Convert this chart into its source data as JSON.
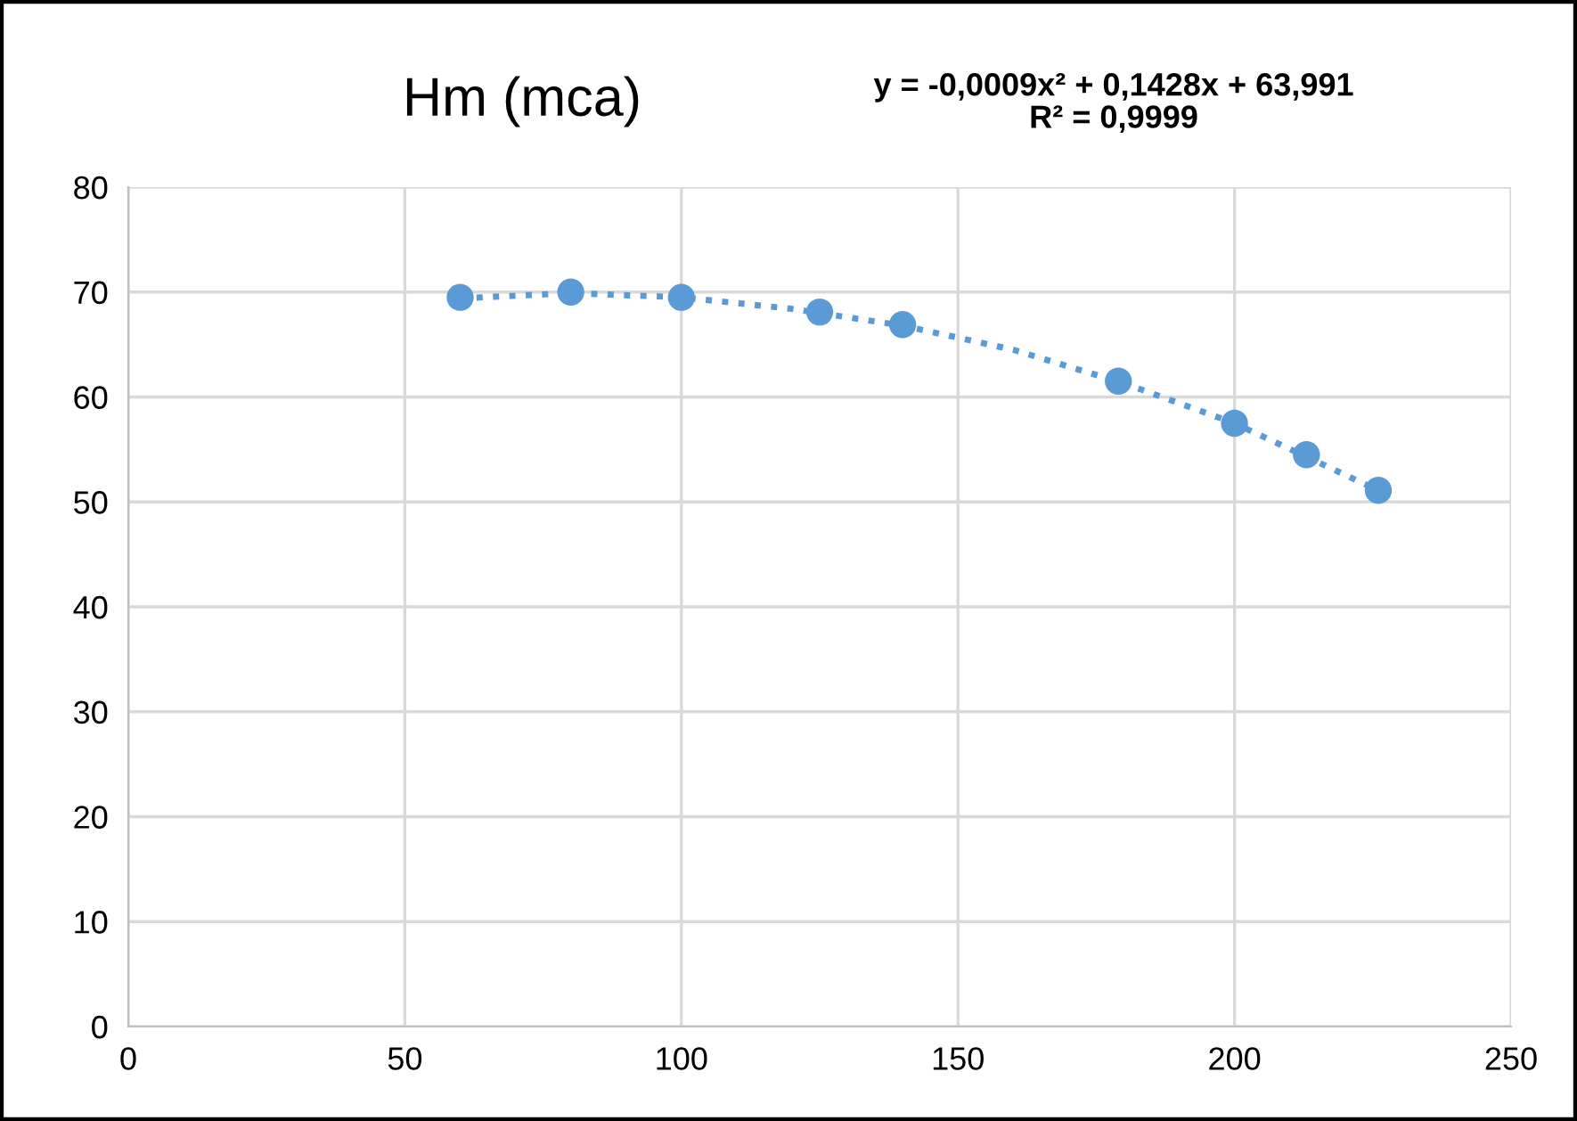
{
  "chart_data": {
    "type": "scatter",
    "title": "Hm (mca)",
    "annotations": [
      "y = -0,0009x² + 0,1428x + 63,991\nR² = 0,9999"
    ],
    "series": [
      {
        "color": "#5b9bd5",
        "marker": "circle",
        "x": [
          60,
          80,
          100,
          125,
          140,
          179,
          200,
          213,
          226
        ],
        "values": [
          69.5,
          70.0,
          69.5,
          68.1,
          66.9,
          61.5,
          57.5,
          54.5,
          51.1
        ]
      },
      {
        "type": "line",
        "color": "#5b9bd5",
        "line_style": "dotted",
        "marker": "none",
        "x": [
          60,
          80,
          100,
          120,
          140,
          160,
          180,
          200,
          226
        ],
        "values": [
          69.4,
          69.9,
          69.5,
          68.4,
          66.8,
          64.5,
          61.3,
          57.5,
          51.1
        ]
      }
    ],
    "xlim": [
      0,
      250
    ],
    "xticks": [
      0,
      50,
      100,
      150,
      200,
      250
    ],
    "ylim": [
      0,
      80
    ],
    "yticks": [
      0,
      10,
      20,
      30,
      40,
      50,
      60,
      70,
      80
    ],
    "grid": true,
    "legend": false
  }
}
